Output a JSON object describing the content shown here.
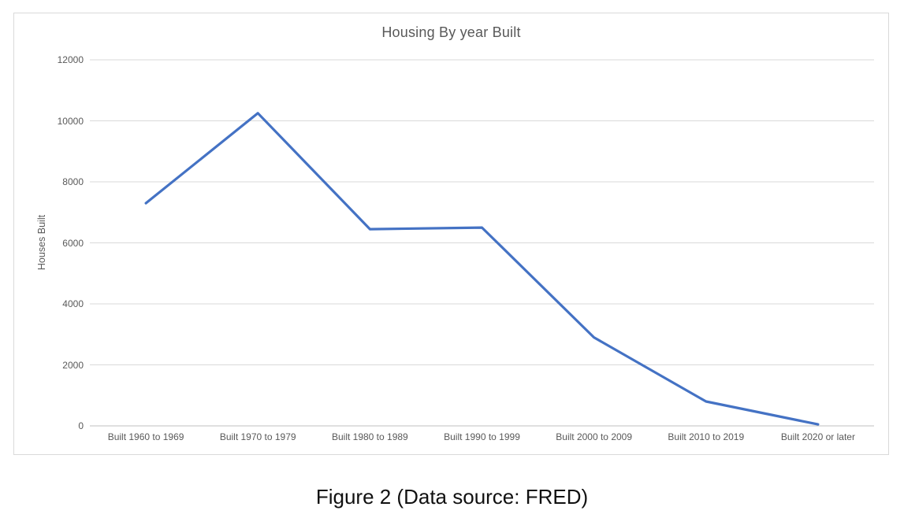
{
  "figure": {
    "caption": "Figure 2 (Data source: FRED)"
  },
  "chart_data": {
    "type": "line",
    "title": "Housing By year Built",
    "xlabel": "",
    "ylabel": "Houses Built",
    "categories": [
      "Built 1960 to 1969",
      "Built 1970 to 1979",
      "Built 1980 to 1989",
      "Built 1990 to 1999",
      "Built 2000 to 2009",
      "Built 2010 to 2019",
      "Built 2020 or later"
    ],
    "series": [
      {
        "name": "Houses Built",
        "values": [
          7300,
          10250,
          6450,
          6500,
          2900,
          800,
          50
        ]
      }
    ],
    "ylim": [
      0,
      12000
    ],
    "ytick_step": 2000,
    "ytick_labels": [
      "0",
      "2000",
      "4000",
      "6000",
      "8000",
      "10000",
      "12000"
    ],
    "grid": true,
    "legend_position": "none",
    "colors": {
      "line": "#4472C4",
      "gridline": "#d9d9d9",
      "axis_line": "#bfbfbf",
      "chart_text": "#595959",
      "caption_text": "#111111",
      "frame_border": "#d9d9d9"
    }
  }
}
